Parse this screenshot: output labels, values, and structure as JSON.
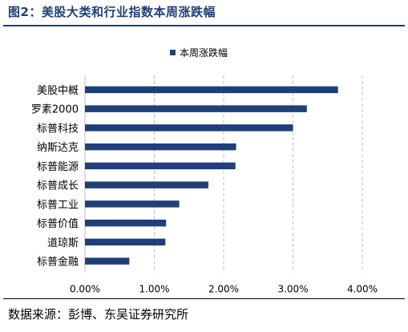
{
  "figure": {
    "title": "图2：美股大类和行业指数本周涨跌幅",
    "source": "数据来源：彭博、东吴证券研究所"
  },
  "colors": {
    "bar": "#1f3f7a",
    "title": "#1f3f7a"
  },
  "chart_data": {
    "type": "bar",
    "orientation": "horizontal",
    "categories": [
      "美股中概",
      "罗素2000",
      "标普科技",
      "纳斯达克",
      "标普能源",
      "标普成长",
      "标普工业",
      "标普价值",
      "道琼斯",
      "标普金融"
    ],
    "series": [
      {
        "name": "本周涨跌幅",
        "values": [
          3.65,
          3.2,
          3.0,
          2.18,
          2.17,
          1.78,
          1.36,
          1.17,
          1.16,
          0.64
        ]
      }
    ],
    "xlim": [
      0,
      4
    ],
    "xticks": [
      "0.00%",
      "1.00%",
      "2.00%",
      "3.00%",
      "4.00%"
    ],
    "grid": "vertical-dashed",
    "legend": "top-center"
  }
}
